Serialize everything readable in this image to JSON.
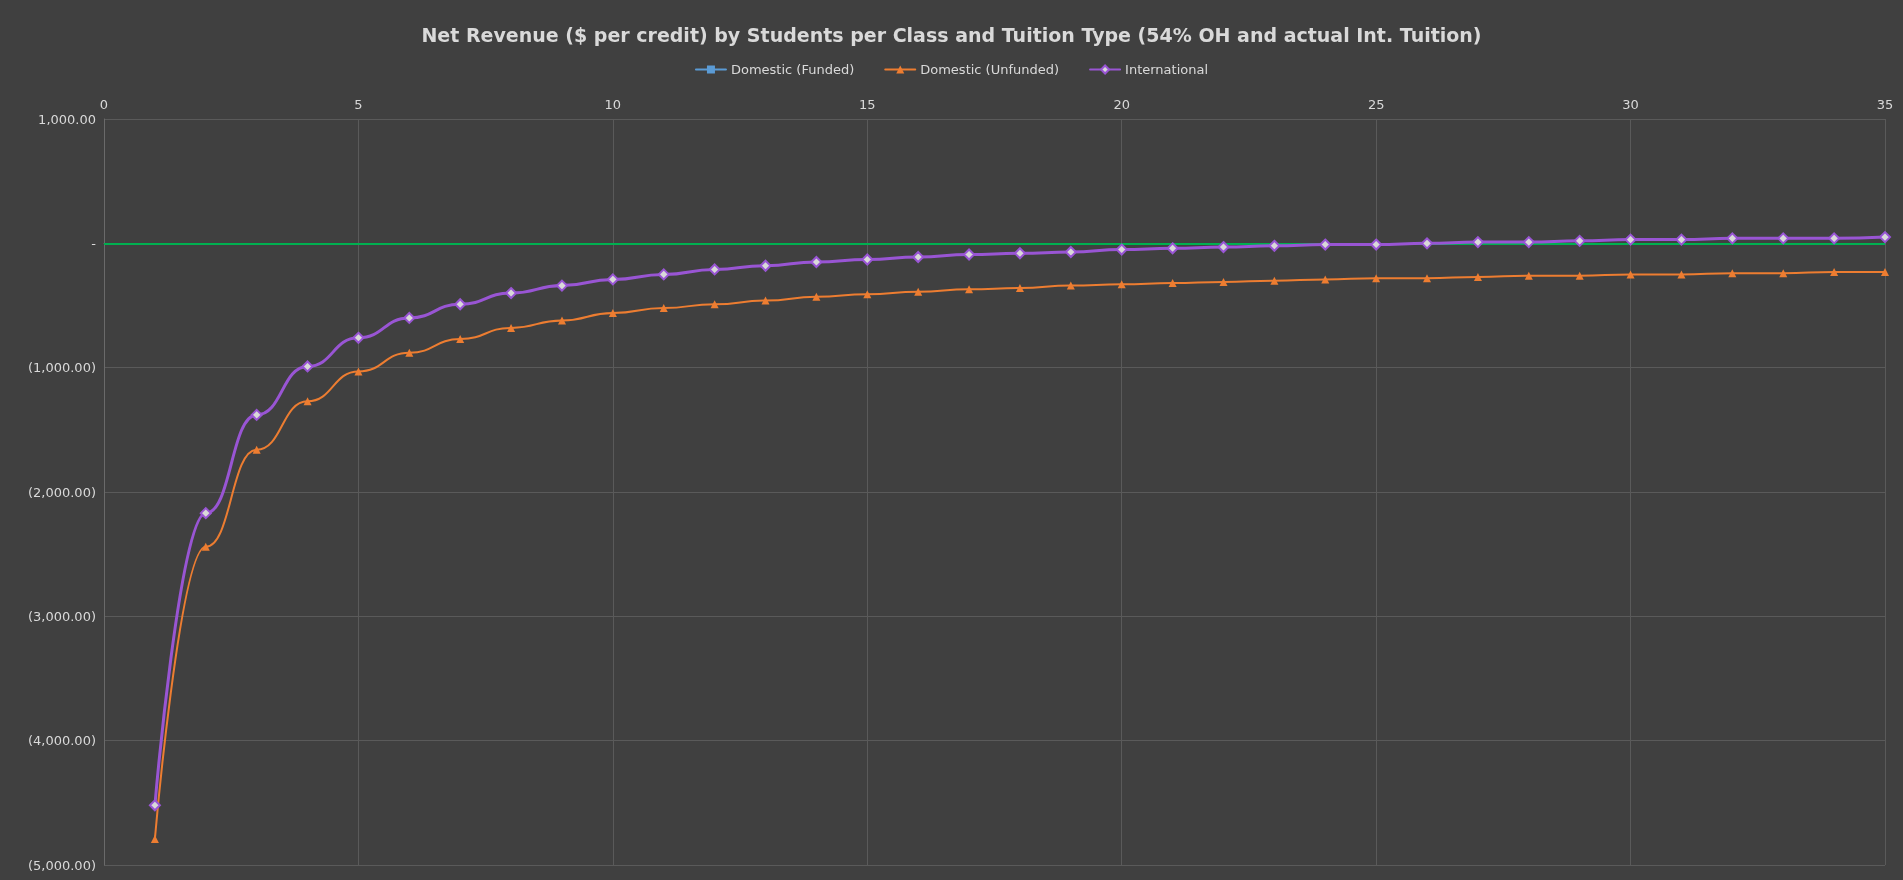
{
  "chart_data": {
    "type": "line",
    "title": "Net Revenue ($ per credit) by Students per Class and Tuition Type (54% OH and actual Int. Tuition)",
    "x": [
      1,
      2,
      3,
      4,
      5,
      6,
      7,
      8,
      9,
      10,
      11,
      12,
      13,
      14,
      15,
      16,
      17,
      18,
      19,
      20,
      21,
      22,
      23,
      24,
      25,
      26,
      27,
      28,
      29,
      30,
      31,
      32,
      33,
      34,
      35
    ],
    "series": [
      {
        "name": "Domestic (Funded)",
        "color": "#5b9bd5",
        "marker": "square",
        "values": [
          null,
          null,
          null,
          null,
          null,
          null,
          null,
          null,
          null,
          null,
          null,
          null,
          null,
          null,
          null,
          null,
          null,
          null,
          null,
          null,
          null,
          null,
          null,
          null,
          null,
          null,
          null,
          null,
          null,
          null,
          null,
          null,
          null,
          null,
          null
        ]
      },
      {
        "name": "Domestic (Unfunded)",
        "color": "#ed7d31",
        "marker": "triangle",
        "values": [
          -4790,
          -2440,
          -1660,
          -1270,
          -1030,
          -880,
          -770,
          -680,
          -620,
          -560,
          -520,
          -490,
          -460,
          -430,
          -410,
          -390,
          -370,
          -360,
          -340,
          -330,
          -320,
          -310,
          -300,
          -290,
          -280,
          -280,
          -270,
          -260,
          -260,
          -250,
          -250,
          -240,
          -240,
          -230,
          -230
        ]
      },
      {
        "name": "International",
        "color": "#9955d4",
        "marker": "diamond",
        "values": [
          -4520,
          -2170,
          -1380,
          -990,
          -760,
          -600,
          -490,
          -400,
          -340,
          -290,
          -250,
          -210,
          -180,
          -150,
          -130,
          -110,
          -90,
          -80,
          -70,
          -50,
          -40,
          -30,
          -20,
          -10,
          -10,
          0,
          10,
          10,
          20,
          30,
          30,
          40,
          40,
          40,
          50
        ]
      }
    ],
    "xlim": [
      0,
      35
    ],
    "xticks": [
      0,
      5,
      10,
      15,
      20,
      25,
      30,
      35
    ],
    "ylim": [
      -5000,
      1000
    ],
    "yticks": [
      {
        "value": 1000,
        "label": "1,000.00"
      },
      {
        "value": 0,
        "label": "-"
      },
      {
        "value": -1000,
        "label": "(1,000.00)"
      },
      {
        "value": -2000,
        "label": "(2,000.00)"
      },
      {
        "value": -3000,
        "label": "(3,000.00)"
      },
      {
        "value": -4000,
        "label": "(4,000.00)"
      },
      {
        "value": -5000,
        "label": "(5,000.00)"
      }
    ],
    "ref_lines": [
      {
        "axis": "y",
        "value": 0,
        "color": "#00b050"
      }
    ],
    "grid": true,
    "legend": "top"
  }
}
